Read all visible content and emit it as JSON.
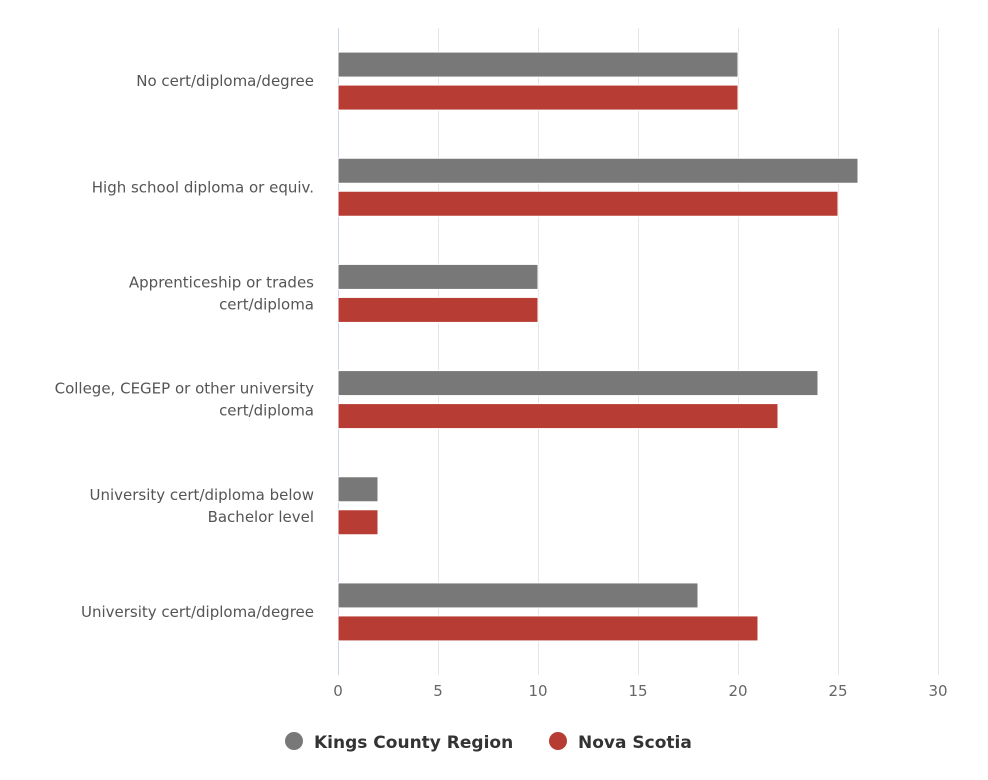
{
  "chart_data": {
    "type": "bar",
    "orientation": "horizontal",
    "title": "",
    "xlabel": "",
    "ylabel": "",
    "categories": [
      [
        "No cert/diploma/degree"
      ],
      [
        "High school diploma or equiv."
      ],
      [
        "Apprenticeship or trades",
        "cert/diploma"
      ],
      [
        "College, CEGEP or other university",
        "cert/diploma"
      ],
      [
        "University cert/diploma below",
        "Bachelor level"
      ],
      [
        "University cert/diploma/degree"
      ]
    ],
    "series": [
      {
        "name": "Kings County Region",
        "color": "#787878",
        "values": [
          20,
          26,
          10,
          24,
          2,
          18
        ]
      },
      {
        "name": "Nova Scotia",
        "color": "#b73c33",
        "values": [
          20,
          25,
          10,
          22,
          2,
          21
        ]
      }
    ],
    "xlim": [
      0,
      30
    ],
    "xticks": [
      0,
      5,
      10,
      15,
      20,
      25,
      30
    ],
    "grid": true,
    "legend": "bottom-center"
  }
}
